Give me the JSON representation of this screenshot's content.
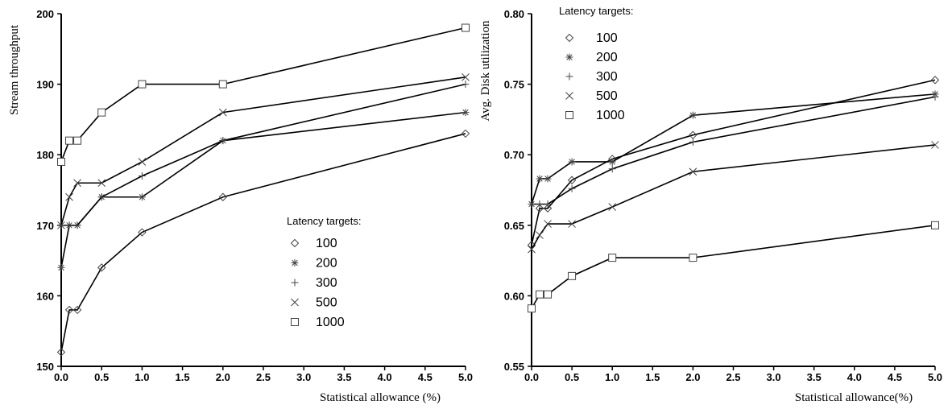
{
  "chart_data": [
    {
      "type": "line",
      "xlabel": "Statistical allowance (%)",
      "ylabel": "Stream throughput",
      "xlim": [
        0,
        5
      ],
      "ylim": [
        150,
        200
      ],
      "xticks": [
        "0.0",
        "0.5",
        "1.0",
        "1.5",
        "2.0",
        "2.5",
        "3.0",
        "3.5",
        "4.0",
        "4.5",
        "5.0"
      ],
      "yticks": [
        "150",
        "160",
        "170",
        "180",
        "190",
        "200"
      ],
      "legend_title": "Latency targets:",
      "legend_position": "center-right",
      "grid": false,
      "series": [
        {
          "name": "100",
          "marker": "diamond",
          "x": [
            0,
            0.1,
            0.2,
            0.5,
            1.0,
            2.0,
            5.0
          ],
          "y": [
            152,
            158,
            158,
            164,
            169,
            174,
            183
          ]
        },
        {
          "name": "200",
          "marker": "star",
          "x": [
            0,
            0.1,
            0.2,
            0.5,
            1.0,
            2.0,
            5.0
          ],
          "y": [
            164,
            170,
            170,
            174,
            174,
            182,
            186
          ]
        },
        {
          "name": "300",
          "marker": "plus",
          "x": [
            0,
            0.1,
            0.2,
            0.5,
            1.0,
            2.0,
            5.0
          ],
          "y": [
            170,
            170,
            170,
            174,
            177,
            182,
            190
          ]
        },
        {
          "name": "500",
          "marker": "x",
          "x": [
            0,
            0.1,
            0.2,
            0.5,
            1.0,
            2.0,
            5.0
          ],
          "y": [
            170,
            174,
            176,
            176,
            179,
            186,
            191
          ]
        },
        {
          "name": "1000",
          "marker": "square",
          "x": [
            0,
            0.1,
            0.2,
            0.5,
            1.0,
            2.0,
            5.0
          ],
          "y": [
            179,
            182,
            182,
            186,
            190,
            190,
            198
          ]
        }
      ]
    },
    {
      "type": "line",
      "xlabel": "Statistical allowance(%)",
      "ylabel": "Avg. Disk utilization",
      "xlim": [
        0,
        5
      ],
      "ylim": [
        0.55,
        0.8
      ],
      "xticks": [
        "0.0",
        "0.5",
        "1.0",
        "1.5",
        "2.0",
        "2.5",
        "3.0",
        "3.5",
        "4.0",
        "4.5",
        "5.0"
      ],
      "yticks": [
        "0.55",
        "0.60",
        "0.65",
        "0.70",
        "0.75",
        "0.80"
      ],
      "legend_title": "Latency targets:",
      "legend_position": "top-left",
      "grid": false,
      "series": [
        {
          "name": "100",
          "marker": "diamond",
          "x": [
            0,
            0.1,
            0.2,
            0.5,
            1.0,
            2.0,
            5.0
          ],
          "y": [
            0.636,
            0.662,
            0.662,
            0.682,
            0.697,
            0.714,
            0.753
          ]
        },
        {
          "name": "200",
          "marker": "star",
          "x": [
            0,
            0.1,
            0.2,
            0.5,
            1.0,
            2.0,
            5.0
          ],
          "y": [
            0.665,
            0.683,
            0.683,
            0.695,
            0.695,
            0.728,
            0.743
          ]
        },
        {
          "name": "300",
          "marker": "plus",
          "x": [
            0,
            0.1,
            0.2,
            0.5,
            1.0,
            2.0,
            5.0
          ],
          "y": [
            0.665,
            0.665,
            0.665,
            0.676,
            0.69,
            0.709,
            0.741
          ]
        },
        {
          "name": "500",
          "marker": "x",
          "x": [
            0,
            0.1,
            0.2,
            0.5,
            1.0,
            2.0,
            5.0
          ],
          "y": [
            0.633,
            0.643,
            0.651,
            0.651,
            0.663,
            0.688,
            0.707
          ]
        },
        {
          "name": "1000",
          "marker": "square",
          "x": [
            0,
            0.1,
            0.2,
            0.5,
            1.0,
            2.0,
            5.0
          ],
          "y": [
            0.591,
            0.601,
            0.601,
            0.614,
            0.627,
            0.627,
            0.65
          ]
        }
      ]
    }
  ]
}
